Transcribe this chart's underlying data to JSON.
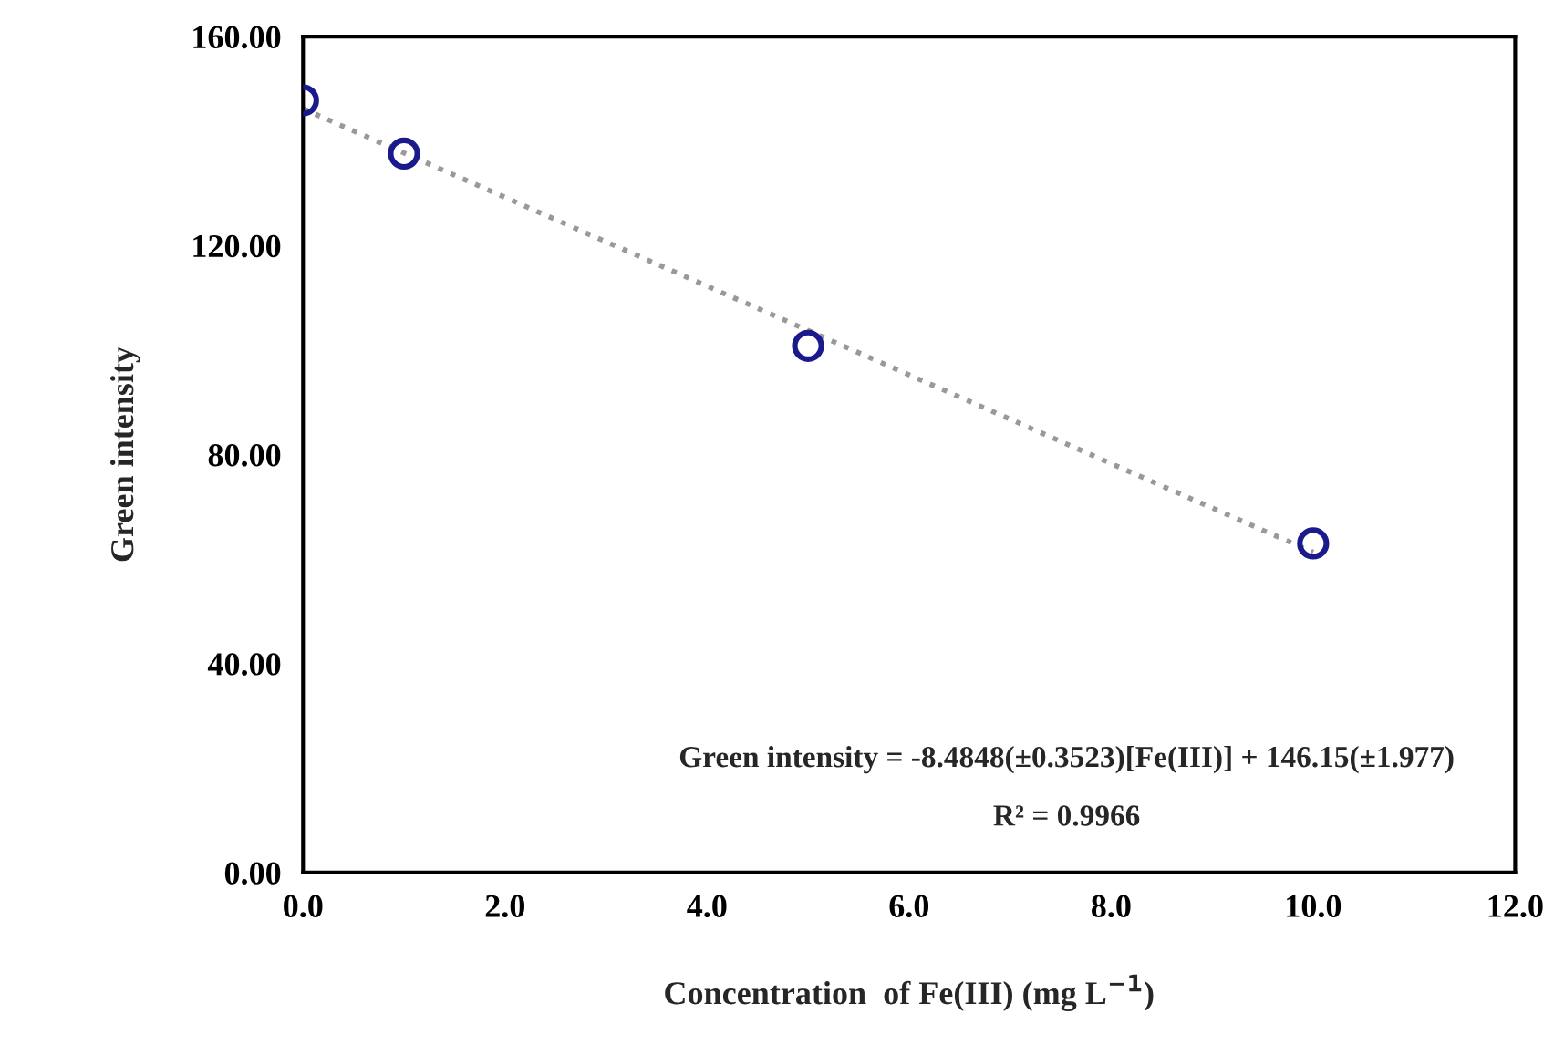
{
  "chart_data": {
    "type": "scatter",
    "xlabel": "Concentration  of Fe(III) (mg L$^{−1}$)",
    "ylabel": "Green intensity",
    "series": [
      {
        "color": "#1a1a8c",
        "marker": "circle",
        "x": [
          0,
          1,
          5,
          10
        ],
        "values": [
          147.8,
          137.6,
          100.8,
          63.0
        ]
      },
      {
        "type": "line",
        "color": "#999999",
        "line_style": "dotted",
        "marker": "none",
        "x": [
          0,
          10
        ],
        "values": [
          146.2,
          61.3
        ]
      }
    ],
    "xlim": [
      0,
      12
    ],
    "ylim": [
      0,
      160
    ],
    "xticks": [
      {
        "value": 0,
        "label": "0.0"
      },
      {
        "value": 2,
        "label": "2.0"
      },
      {
        "value": 4,
        "label": "4.0"
      },
      {
        "value": 6,
        "label": "6.0"
      },
      {
        "value": 8,
        "label": "8.0"
      },
      {
        "value": 10,
        "label": "10.0"
      },
      {
        "value": 12,
        "label": "12.0"
      }
    ],
    "yticks": [
      {
        "value": 0,
        "label": "0.00"
      },
      {
        "value": 40,
        "label": "40.00"
      },
      {
        "value": 80,
        "label": "80.00"
      },
      {
        "value": 120,
        "label": "120.00"
      },
      {
        "value": 160,
        "label": "160.00"
      }
    ],
    "annotations": [
      "Green intensity = -8.4848(±0.3523)[Fe(III)] + 146.15(±1.977)",
      "R² = 0.9966"
    ],
    "grid": false,
    "legend": false
  }
}
